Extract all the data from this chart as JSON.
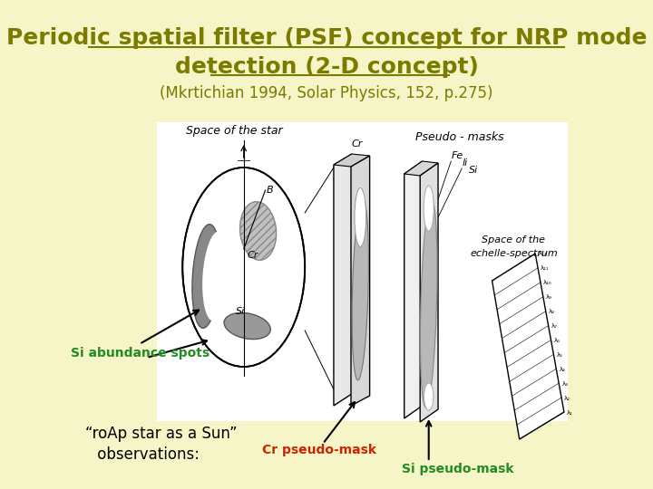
{
  "background_color": "#f5f5c8",
  "title_line1": "Periodic spatial filter (PSF) concept for NRP mode",
  "title_line2": "detection (2-D concept)",
  "title_color": "#7b7b00",
  "title_fontsize": 18,
  "subtitle": "(Mkrtichian 1994, Solar Physics, 152, p.275)",
  "subtitle_color": "#7b7b00",
  "subtitle_fontsize": 12,
  "annotation_si_spots": "Si abundance spots",
  "annotation_si_spots_color": "#228B22",
  "annotation_si_spots_fontsize": 10,
  "annotation_cr_mask": "Cr pseudo-mask",
  "annotation_cr_mask_color": "#cc2200",
  "annotation_cr_mask_fontsize": 10,
  "annotation_si_mask": "Si pseudo-mask",
  "annotation_si_mask_color": "#228B22",
  "annotation_si_mask_fontsize": 10,
  "annotation_roap_line1": "“roAp star as a Sun”",
  "annotation_roap_line2": " observations:",
  "annotation_roap_color": "#000000",
  "annotation_roap_fontsize": 12
}
